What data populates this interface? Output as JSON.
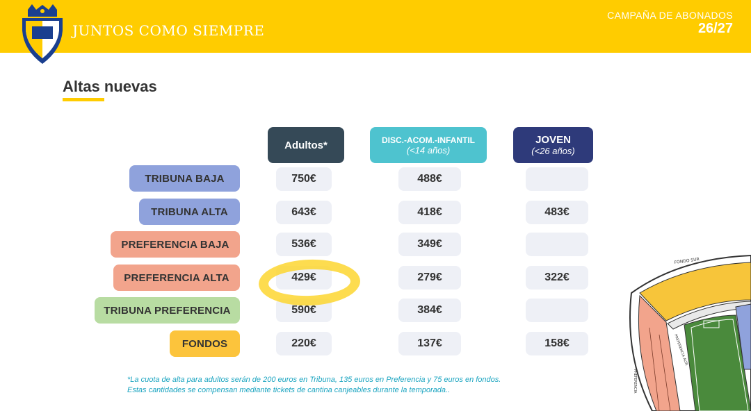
{
  "header": {
    "slogan": "JUNTOS COMO SIEMPRE",
    "campaign_line1": "CAMPAÑA DE ABONADOS",
    "campaign_line2": "26/27",
    "logo_text": "CÁDIZ",
    "background_color": "#ffcc00"
  },
  "section": {
    "title": "Altas nuevas"
  },
  "columns": [
    {
      "label": "Adultos*",
      "sub": "",
      "color": "#354957"
    },
    {
      "label": "DISC.-ACOM.-INFANTIL",
      "sub": "(<14 años)",
      "color": "#4ec3cf"
    },
    {
      "label": "JOVEN",
      "sub": "(<26 años)",
      "color": "#2e3a7a"
    }
  ],
  "rows": [
    {
      "label": "TRIBUNA BAJA",
      "color": "#8fa2dc",
      "adultos": "750€",
      "disc": "488€",
      "joven": ""
    },
    {
      "label": "TRIBUNA ALTA",
      "color": "#8fa2dc",
      "adultos": "643€",
      "disc": "418€",
      "joven": "483€"
    },
    {
      "label": "PREFERENCIA BAJA",
      "color": "#f2a48c",
      "adultos": "536€",
      "disc": "349€",
      "joven": ""
    },
    {
      "label": "PREFERENCIA ALTA",
      "color": "#f2a48c",
      "adultos": "429€",
      "disc": "279€",
      "joven": "322€"
    },
    {
      "label": "TRIBUNA PREFERENCIA",
      "color": "#b8dca2",
      "adultos": "590€",
      "disc": "384€",
      "joven": ""
    },
    {
      "label": "FONDOS",
      "color": "#fcc43c",
      "adultos": "220€",
      "disc": "137€",
      "joven": "158€"
    }
  ],
  "highlight": {
    "row": "PREFERENCIA ALTA",
    "column": "Adultos*",
    "color": "#fcd428"
  },
  "note": {
    "line1": "*La cuota de alta para adultos serán de 200 euros en Tribuna, 135 euros en Preferencia y 75 euros en fondos.",
    "line2": "Estas cantidades se compensan mediante tickets de cantina canjeables durante la temporada.."
  },
  "stadium_map": {
    "fondo_label": "FONDO SUR",
    "label_preferencia": "PREFERENCIA",
    "label_side": "PREFERENCIA ALTA"
  }
}
